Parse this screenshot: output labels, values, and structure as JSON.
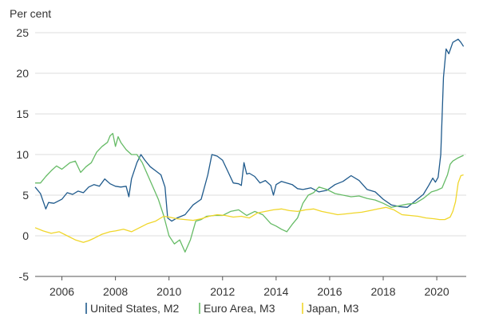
{
  "chart_data": {
    "type": "line",
    "title": "",
    "ylabel": "Per cent",
    "xlabel": "",
    "xlim": [
      2005.0,
      2021.1
    ],
    "ylim": [
      -5,
      25
    ],
    "y_ticks": [
      -5,
      0,
      5,
      10,
      15,
      20,
      25
    ],
    "x_ticks": [
      2006,
      2008,
      2010,
      2012,
      2014,
      2016,
      2018,
      2020
    ],
    "grid": "horizontal",
    "legend_position": "bottom",
    "series": [
      {
        "name": "United States, M2",
        "color": "#1f5a8c",
        "x": [
          2005.0,
          2005.2,
          2005.4,
          2005.5,
          2005.7,
          2006.0,
          2006.2,
          2006.4,
          2006.6,
          2006.8,
          2007.0,
          2007.2,
          2007.4,
          2007.6,
          2007.8,
          2008.0,
          2008.2,
          2008.4,
          2008.5,
          2008.6,
          2008.8,
          2008.95,
          2009.1,
          2009.3,
          2009.5,
          2009.7,
          2009.85,
          2009.95,
          2010.1,
          2010.3,
          2010.6,
          2010.9,
          2011.2,
          2011.45,
          2011.6,
          2011.8,
          2012.0,
          2012.2,
          2012.4,
          2012.6,
          2012.7,
          2012.8,
          2012.9,
          2013.0,
          2013.2,
          2013.4,
          2013.6,
          2013.8,
          2013.9,
          2014.0,
          2014.2,
          2014.4,
          2014.6,
          2014.8,
          2015.0,
          2015.3,
          2015.6,
          2015.9,
          2016.2,
          2016.5,
          2016.8,
          2017.1,
          2017.4,
          2017.7,
          2018.0,
          2018.3,
          2018.6,
          2018.9,
          2019.2,
          2019.5,
          2019.7,
          2019.85,
          2019.95,
          2020.05,
          2020.15,
          2020.25,
          2020.35,
          2020.45,
          2020.6,
          2020.8,
          2020.9,
          2021.0
        ],
        "values": [
          6,
          5.2,
          3.3,
          4.1,
          4.0,
          4.5,
          5.3,
          5.1,
          5.5,
          5.3,
          6.0,
          6.3,
          6.1,
          7.0,
          6.4,
          6.1,
          6.0,
          6.1,
          4.8,
          7.0,
          9.0,
          10.0,
          9.3,
          8.5,
          8.0,
          7.5,
          6.0,
          2.2,
          1.8,
          2.2,
          2.6,
          3.8,
          4.5,
          7.5,
          10.0,
          9.8,
          9.3,
          7.9,
          6.5,
          6.4,
          6.2,
          9.0,
          7.6,
          7.7,
          7.3,
          6.5,
          6.8,
          6.2,
          5.0,
          6.3,
          6.7,
          6.5,
          6.3,
          5.8,
          5.7,
          5.9,
          5.4,
          5.6,
          6.3,
          6.7,
          7.4,
          6.8,
          5.7,
          5.4,
          4.5,
          3.8,
          3.6,
          3.5,
          4.3,
          5.1,
          6.2,
          7.1,
          6.6,
          7.2,
          10.0,
          19.5,
          23.0,
          22.4,
          23.8,
          24.2,
          23.8,
          23.3
        ]
      },
      {
        "name": "Euro Area, M3",
        "color": "#66bb66",
        "x": [
          2005.0,
          2005.2,
          2005.4,
          2005.6,
          2005.8,
          2006.0,
          2006.3,
          2006.5,
          2006.7,
          2006.9,
          2007.1,
          2007.3,
          2007.5,
          2007.7,
          2007.8,
          2007.9,
          2008.0,
          2008.1,
          2008.2,
          2008.4,
          2008.6,
          2008.8,
          2009.0,
          2009.2,
          2009.4,
          2009.6,
          2009.8,
          2010.0,
          2010.2,
          2010.4,
          2010.6,
          2010.8,
          2011.0,
          2011.2,
          2011.4,
          2011.7,
          2012.0,
          2012.3,
          2012.6,
          2012.9,
          2013.2,
          2013.5,
          2013.8,
          2014.0,
          2014.2,
          2014.4,
          2014.6,
          2014.8,
          2015.0,
          2015.2,
          2015.4,
          2015.6,
          2015.9,
          2016.2,
          2016.5,
          2016.8,
          2017.1,
          2017.4,
          2017.7,
          2018.0,
          2018.3,
          2018.6,
          2018.9,
          2019.2,
          2019.5,
          2019.8,
          2020.0,
          2020.2,
          2020.4,
          2020.5,
          2020.6,
          2020.8,
          2021.0
        ],
        "values": [
          6.5,
          6.5,
          7.3,
          8.0,
          8.6,
          8.2,
          9.0,
          9.2,
          7.8,
          8.5,
          9.0,
          10.3,
          11.0,
          11.5,
          12.3,
          12.6,
          11.0,
          12.2,
          11.5,
          10.6,
          10.0,
          10.0,
          9.0,
          7.5,
          6.0,
          4.5,
          2.5,
          0.0,
          -1.0,
          -0.5,
          -2.0,
          -0.5,
          1.8,
          2.0,
          2.4,
          2.5,
          2.5,
          3.0,
          3.2,
          2.5,
          3.0,
          2.6,
          1.5,
          1.2,
          0.8,
          0.5,
          1.4,
          2.2,
          4.0,
          5.0,
          5.3,
          6.0,
          5.7,
          5.2,
          5.0,
          4.8,
          4.9,
          4.6,
          4.4,
          4.0,
          3.5,
          3.7,
          3.9,
          4.0,
          4.6,
          5.4,
          5.6,
          5.9,
          7.5,
          8.8,
          9.2,
          9.6,
          9.9
        ]
      },
      {
        "name": "Japan, M3",
        "color": "#f0d62a",
        "x": [
          2005.0,
          2005.3,
          2005.6,
          2005.9,
          2006.2,
          2006.5,
          2006.8,
          2007.0,
          2007.2,
          2007.5,
          2007.8,
          2008.0,
          2008.3,
          2008.6,
          2008.9,
          2009.2,
          2009.5,
          2009.8,
          2010.0,
          2010.3,
          2010.6,
          2010.9,
          2011.2,
          2011.5,
          2011.8,
          2012.1,
          2012.4,
          2012.7,
          2013.0,
          2013.3,
          2013.6,
          2013.9,
          2014.2,
          2014.5,
          2014.8,
          2015.1,
          2015.4,
          2015.7,
          2016.0,
          2016.3,
          2016.6,
          2016.9,
          2017.2,
          2017.5,
          2017.8,
          2018.1,
          2018.4,
          2018.7,
          2019.0,
          2019.3,
          2019.6,
          2019.9,
          2020.1,
          2020.3,
          2020.5,
          2020.6,
          2020.7,
          2020.8,
          2020.9,
          2021.0
        ],
        "values": [
          1.0,
          0.6,
          0.3,
          0.5,
          0.0,
          -0.5,
          -0.8,
          -0.6,
          -0.3,
          0.2,
          0.5,
          0.6,
          0.8,
          0.5,
          1.0,
          1.5,
          1.8,
          2.4,
          2.3,
          2.1,
          2.0,
          1.9,
          2.1,
          2.4,
          2.6,
          2.5,
          2.3,
          2.4,
          2.2,
          2.8,
          3.0,
          3.2,
          3.3,
          3.1,
          3.0,
          3.2,
          3.3,
          3.0,
          2.8,
          2.6,
          2.7,
          2.8,
          2.9,
          3.1,
          3.3,
          3.5,
          3.2,
          2.6,
          2.5,
          2.4,
          2.2,
          2.1,
          2.0,
          2.0,
          2.3,
          3.0,
          4.2,
          6.5,
          7.4,
          7.5
        ]
      }
    ]
  }
}
